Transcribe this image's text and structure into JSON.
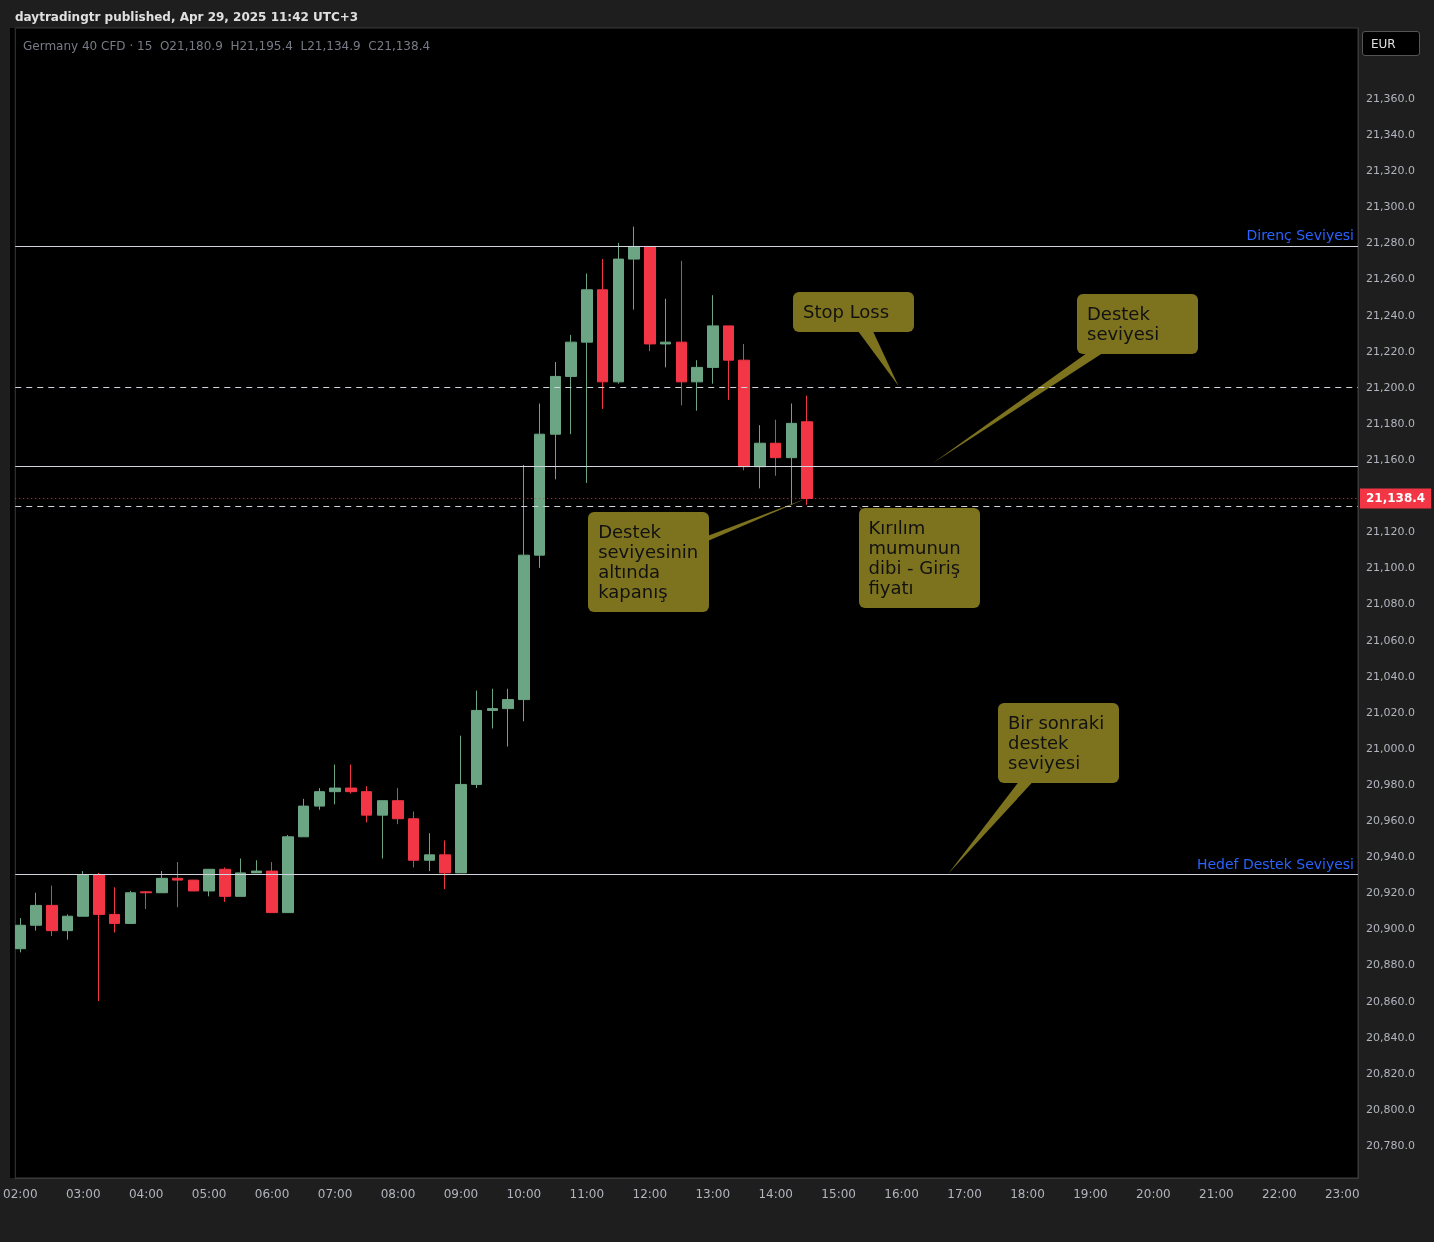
{
  "chart_data": {
    "type": "candlestick",
    "title": "daytradingtr published, Apr 29, 2025 11:42 UTC+3",
    "subtitle": "Germany 40 CFD · 15  O21,180.9  H21,195.4  L21,134.9  C21,138.4",
    "x": [
      2,
      2.25,
      2.5,
      2.75,
      3,
      3.25,
      3.5,
      3.75,
      4,
      4.25,
      4.5,
      4.75,
      5,
      5.25,
      5.5,
      5.75,
      6,
      6.25,
      6.5,
      6.75,
      7,
      7.25,
      7.5,
      7.75,
      8,
      8.25,
      8.5,
      8.75,
      9,
      9.25,
      9.5,
      9.75,
      10,
      10.25,
      10.5,
      10.75,
      11,
      11.25,
      11.5,
      11.75,
      12,
      12.25,
      12.5,
      12.75,
      13,
      13.25,
      13.5,
      13.75,
      14,
      14.25,
      14.5
    ],
    "ohlc": [
      [
        20889,
        20906,
        20887,
        20902
      ],
      [
        20902,
        20920,
        20899,
        20913
      ],
      [
        20913,
        20924,
        20896,
        20899
      ],
      [
        20899,
        20908,
        20894,
        20907
      ],
      [
        20907,
        20932,
        20907,
        20930
      ],
      [
        20930,
        20931,
        20860,
        20908
      ],
      [
        20908,
        20923,
        20898,
        20903
      ],
      [
        20903,
        20921,
        20903,
        20920
      ],
      [
        20920.5,
        20921,
        20911,
        20920
      ],
      [
        20920,
        20932,
        20920,
        20928
      ],
      [
        20928,
        20937,
        20912,
        20927
      ],
      [
        20927,
        20927,
        20921,
        20921
      ],
      [
        20921,
        20933,
        20918,
        20933
      ],
      [
        20933,
        20934,
        20915,
        20918
      ],
      [
        20918,
        20939,
        20918,
        20931
      ],
      [
        20931,
        20938,
        20931,
        20932
      ],
      [
        20932,
        20937,
        20909,
        20909
      ],
      [
        20909,
        20952,
        20909,
        20951
      ],
      [
        20951,
        20972,
        20951,
        20968
      ],
      [
        20968,
        20978,
        20966,
        20976
      ],
      [
        20976,
        20991,
        20969,
        20978
      ],
      [
        20978,
        20991,
        20975,
        20976
      ],
      [
        20976,
        20979,
        20959,
        20963
      ],
      [
        20963,
        20971,
        20939,
        20971
      ],
      [
        20971,
        20978,
        20958,
        20961
      ],
      [
        20961,
        20965,
        20934,
        20938
      ],
      [
        20938,
        20953,
        20932,
        20941
      ],
      [
        20941,
        20949,
        20922,
        20931
      ],
      [
        20931,
        21007,
        20931,
        20980
      ],
      [
        20980,
        21032,
        20978,
        21021
      ],
      [
        21021,
        21033,
        21011,
        21022
      ],
      [
        21022,
        21033,
        21001,
        21027
      ],
      [
        21027,
        21157,
        21015,
        21107
      ],
      [
        21107,
        21191,
        21100,
        21174
      ],
      [
        21174,
        21214,
        21149,
        21206
      ],
      [
        21206,
        21229,
        21174,
        21225
      ],
      [
        21225,
        21263,
        21147,
        21254
      ],
      [
        21254,
        21271,
        21188,
        21203
      ],
      [
        21203,
        21280,
        21202,
        21271
      ],
      [
        21271,
        21289,
        21243,
        21278
      ],
      [
        21278,
        21278,
        21220,
        21224
      ],
      [
        21224,
        21249,
        21211,
        21225
      ],
      [
        21225,
        21270,
        21190,
        21203
      ],
      [
        21203,
        21215,
        21187,
        21211
      ],
      [
        21211,
        21251,
        21202,
        21234
      ],
      [
        21234,
        21234,
        21193,
        21215
      ],
      [
        21215,
        21224,
        21154,
        21156
      ],
      [
        21156,
        21179,
        21144,
        21169
      ],
      [
        21169,
        21182,
        21151,
        21161
      ],
      [
        21161,
        21191,
        21135,
        21180
      ],
      [
        21180.9,
        21195.4,
        21134.9,
        21138.4
      ]
    ],
    "colors": [
      "#6ba583",
      "#6ba583",
      "#f23645",
      "#6ba583",
      "#6ba583",
      "#f23645",
      "#f23645",
      "#6ba583",
      "#f23645",
      "#6ba583",
      "#f23645",
      "#f23645",
      "#6ba583",
      "#f23645",
      "#6ba583",
      "#6ba583",
      "#f23645",
      "#6ba583",
      "#6ba583",
      "#6ba583",
      "#6ba583",
      "#f23645",
      "#f23645",
      "#6ba583",
      "#f23645",
      "#f23645",
      "#6ba583",
      "#f23645",
      "#6ba583",
      "#6ba583",
      "#6ba583",
      "#6ba583",
      "#6ba583",
      "#6ba583",
      "#6ba583",
      "#6ba583",
      "#6ba583",
      "#f23645",
      "#6ba583",
      "#6ba583",
      "#f23645",
      "#6ba583",
      "#f23645",
      "#6ba583",
      "#6ba583",
      "#f23645",
      "#f23645",
      "#6ba583",
      "#f23645",
      "#6ba583",
      "#f23645"
    ],
    "xlim": [
      1.92,
      23.25
    ],
    "xticks": [
      {
        "value": 2,
        "label": "02:00"
      },
      {
        "value": 3,
        "label": "03:00"
      },
      {
        "value": 4,
        "label": "04:00"
      },
      {
        "value": 5,
        "label": "05:00"
      },
      {
        "value": 6,
        "label": "06:00"
      },
      {
        "value": 7,
        "label": "07:00"
      },
      {
        "value": 8,
        "label": "08:00"
      },
      {
        "value": 9,
        "label": "09:00"
      },
      {
        "value": 10,
        "label": "10:00"
      },
      {
        "value": 11,
        "label": "11:00"
      },
      {
        "value": 12,
        "label": "12:00"
      },
      {
        "value": 13,
        "label": "13:00"
      },
      {
        "value": 14,
        "label": "14:00"
      },
      {
        "value": 15,
        "label": "15:00"
      },
      {
        "value": 16,
        "label": "16:00"
      },
      {
        "value": 17,
        "label": "17:00"
      },
      {
        "value": 18,
        "label": "18:00"
      },
      {
        "value": 19,
        "label": "19:00"
      },
      {
        "value": 20,
        "label": "20:00"
      },
      {
        "value": 21,
        "label": "21:00"
      },
      {
        "value": 22,
        "label": "22:00"
      },
      {
        "value": 23,
        "label": "23:00"
      }
    ],
    "ylim": [
      20762,
      21399
    ],
    "yticks": [
      {
        "value": 20780,
        "label": "20,780.0"
      },
      {
        "value": 20800,
        "label": "20,800.0"
      },
      {
        "value": 20820,
        "label": "20,820.0"
      },
      {
        "value": 20840,
        "label": "20,840.0"
      },
      {
        "value": 20860,
        "label": "20,860.0"
      },
      {
        "value": 20880,
        "label": "20,880.0"
      },
      {
        "value": 20900,
        "label": "20,900.0"
      },
      {
        "value": 20920,
        "label": "20,920.0"
      },
      {
        "value": 20940,
        "label": "20,940.0"
      },
      {
        "value": 20960,
        "label": "20,960.0"
      },
      {
        "value": 20980,
        "label": "20,980.0"
      },
      {
        "value": 21000,
        "label": "21,000.0"
      },
      {
        "value": 21020,
        "label": "21,020.0"
      },
      {
        "value": 21040,
        "label": "21,040.0"
      },
      {
        "value": 21060,
        "label": "21,060.0"
      },
      {
        "value": 21080,
        "label": "21,080.0"
      },
      {
        "value": 21100,
        "label": "21,100.0"
      },
      {
        "value": 21120,
        "label": "21,120.0"
      },
      {
        "value": 21160,
        "label": "21,160.0"
      },
      {
        "value": 21180,
        "label": "21,180.0"
      },
      {
        "value": 21200,
        "label": "21,200.0"
      },
      {
        "value": 21220,
        "label": "21,220.0"
      },
      {
        "value": 21240,
        "label": "21,240.0"
      },
      {
        "value": 21260,
        "label": "21,260.0"
      },
      {
        "value": 21280,
        "label": "21,280.0"
      },
      {
        "value": 21300,
        "label": "21,300.0"
      },
      {
        "value": 21320,
        "label": "21,320.0"
      },
      {
        "value": 21340,
        "label": "21,340.0"
      },
      {
        "value": 21360,
        "label": "21,360.0"
      }
    ],
    "ref_lines": [
      {
        "axis": "y",
        "value": 21278,
        "label": "Direnç Seviyesi",
        "color": "#d1d4dc",
        "line_style": "solid"
      },
      {
        "axis": "y",
        "value": 21156,
        "color": "#d1d4dc",
        "line_style": "solid"
      },
      {
        "axis": "y",
        "value": 20930,
        "label": "Hedef Destek Seviyesi",
        "color": "#d1d4dc",
        "line_style": "solid"
      },
      {
        "axis": "y",
        "value": 21200,
        "color": "#d1d4dc",
        "line_style": "dashed"
      },
      {
        "axis": "y",
        "value": 21134,
        "color": "#d1d4dc",
        "line_style": "dashed"
      },
      {
        "axis": "y",
        "value": 21138.4,
        "label": "21,138.4",
        "color": "#f23645",
        "line_style": "dotted"
      }
    ],
    "annotations": [
      "Stop Loss",
      "Destek\nseviyesi",
      {
        "text": "Destek\nseviyesinin\naltında\nkapanış",
        "x": 14.5,
        "y": 21138.4
      },
      {
        "text": "Kırılım\nmumunun\ndibi - Giriş\nfiyatı",
        "x": 15.3,
        "y": 21134
      },
      "Bir sonraki\ndestek\nseviyesi",
      "EUR"
    ],
    "grid": false
  }
}
